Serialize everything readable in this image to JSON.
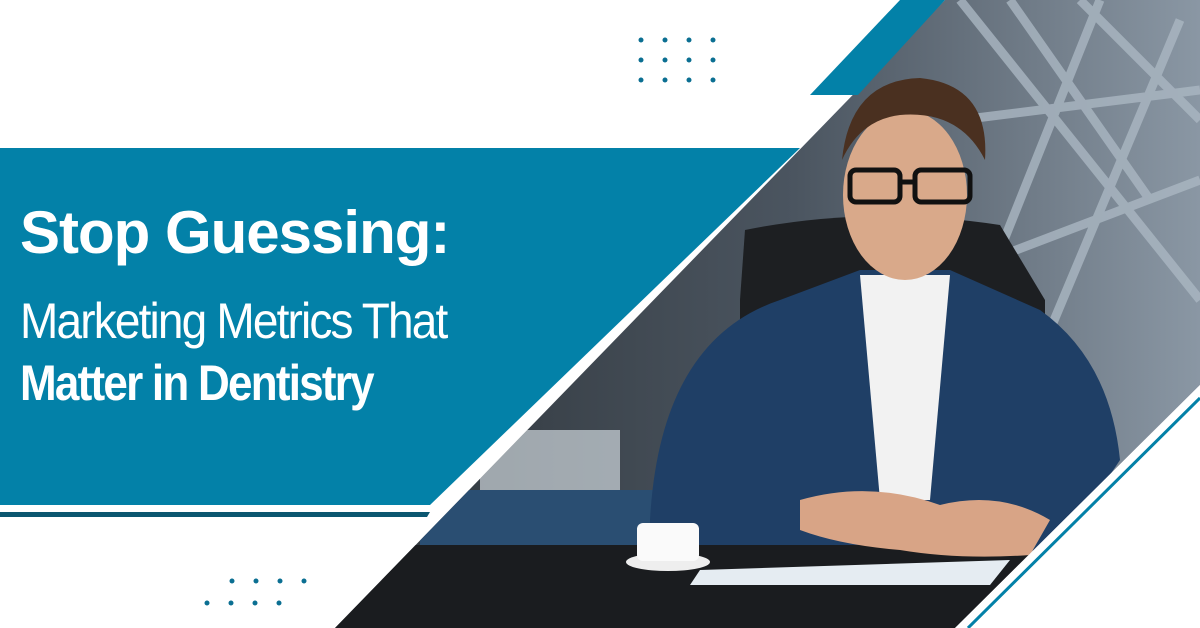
{
  "banner": {
    "title_line1": "Stop Guessing:",
    "title_line2": "Marketing Metrics That",
    "title_line3": "Matter in Dentistry"
  },
  "colors": {
    "accent": "#0381a8",
    "dark_accent": "#0b5670",
    "background": "#ffffff"
  },
  "photo": {
    "subject": "smiling man in glasses and navy suit seated at office desk with coffee cup"
  }
}
